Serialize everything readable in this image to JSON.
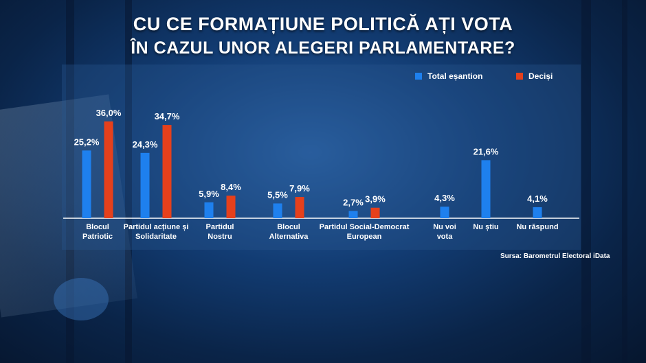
{
  "title_line1": "CU CE FORMAȚIUNE POLITICĂ AȚI VOTA",
  "title_line2": "ÎN CAZUL UNOR ALEGERI PARLAMENTARE?",
  "source": "Sursa: Barometrul Electoral iData",
  "colors": {
    "total": "#1e80ee",
    "decisi": "#e5401c"
  },
  "chart_data": {
    "type": "bar",
    "title": "CU CE FORMAȚIUNE POLITICĂ AȚI VOTA ÎN CAZUL UNOR ALEGERI PARLAMENTARE?",
    "categories": [
      [
        "Blocul",
        "Patriotic"
      ],
      [
        "Partidul acțiune și",
        "Solidaritate"
      ],
      [
        "Partidul",
        "Nostru"
      ],
      [
        "Blocul",
        "Alternativa"
      ],
      [
        "Partidul Social-Democrat",
        "European"
      ],
      [
        "Nu voi",
        "vota"
      ],
      [
        "Nu știu"
      ],
      [
        "Nu răspund"
      ]
    ],
    "series": [
      {
        "name": "Total eșantion",
        "values": [
          25.2,
          24.3,
          5.9,
          5.5,
          2.7,
          4.3,
          21.6,
          4.1
        ],
        "labels": [
          "25,2%",
          "24,3%",
          "5,9%",
          "5,5%",
          "2,7%",
          "4,3%",
          "21,6%",
          "4,1%"
        ]
      },
      {
        "name": "Deciși",
        "values": [
          36.0,
          34.7,
          8.4,
          7.9,
          3.9,
          null,
          null,
          null
        ],
        "labels": [
          "36,0%",
          "34,7%",
          "8,4%",
          "7,9%",
          "3,9%",
          null,
          null,
          null
        ]
      }
    ],
    "ylim": [
      0,
      40
    ],
    "legend": "top-right",
    "grid": false
  }
}
